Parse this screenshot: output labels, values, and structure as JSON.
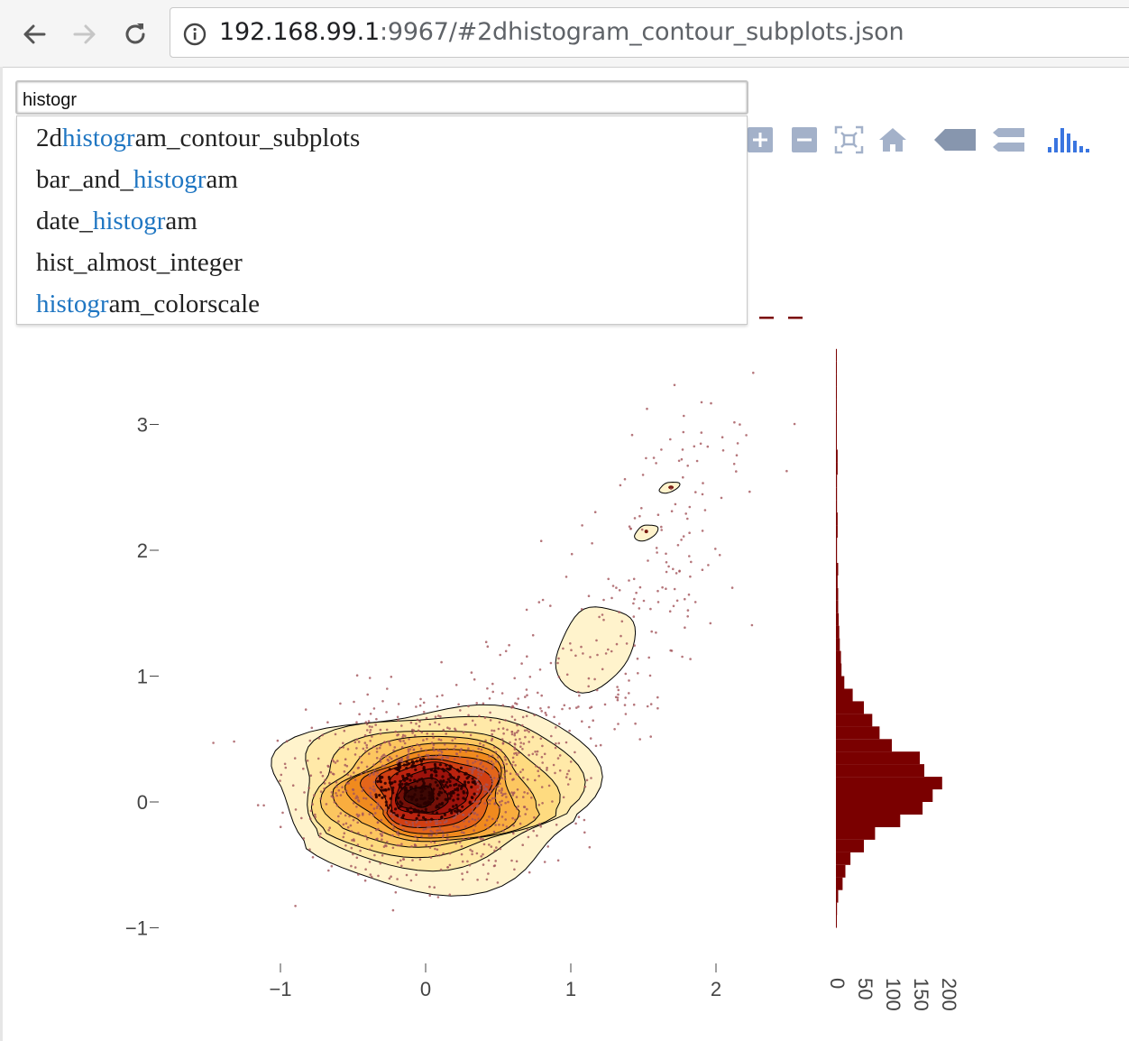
{
  "browser": {
    "url_host": "192.168.99.1",
    "url_rest": ":9967/#2dhistogram_contour_subplots.json"
  },
  "search": {
    "value": "histogr"
  },
  "dropdown": {
    "items": [
      {
        "pre": "2d",
        "match": "histogr",
        "post": "am_contour_subplots"
      },
      {
        "pre": "bar_and_",
        "match": "histogr",
        "post": "am"
      },
      {
        "pre": "date_",
        "match": "histogr",
        "post": "am"
      },
      {
        "pre": "hist_almost_integer",
        "match": "",
        "post": ""
      },
      {
        "pre": "",
        "match": "histogr",
        "post": "am_colorscale"
      }
    ]
  },
  "modebar": {
    "icons": [
      "zoom-in-icon",
      "zoom-out-icon",
      "autoscale-icon",
      "reset-axes-icon",
      "hover-closest-icon",
      "hover-compare-icon",
      "plotly-logo-icon"
    ]
  },
  "colors": {
    "highlight": "#1f76c2",
    "bar": "#7a0000",
    "modebar_icon": "#a3b1c9",
    "plotly_blue": "#3a75e0"
  },
  "chart_data": {
    "type": "heatmap",
    "subtype": "2d histogram contour with marginal histogram",
    "main": {
      "xticks": [
        -1,
        0,
        1,
        2
      ],
      "yticks": [
        -1,
        0,
        1,
        2,
        3
      ],
      "xlim": [
        -1.8,
        2.6
      ],
      "ylim": [
        -1.1,
        3.6
      ]
    },
    "marginal_y": {
      "type": "bar",
      "orientation": "horizontal",
      "xticks": [
        0,
        50,
        100,
        150,
        200
      ],
      "bins_y": [
        -1.0,
        -0.9,
        -0.8,
        -0.7,
        -0.6,
        -0.5,
        -0.4,
        -0.3,
        -0.2,
        -0.1,
        0.0,
        0.1,
        0.2,
        0.3,
        0.4,
        0.5,
        0.6,
        0.7,
        0.8,
        0.9,
        1.0,
        1.1,
        1.2,
        1.3,
        1.4,
        1.5,
        1.6,
        1.7,
        1.8,
        1.9,
        2.0,
        2.1,
        2.2,
        2.3,
        2.4,
        2.5,
        2.6,
        2.7,
        2.8,
        2.9,
        3.0,
        3.1,
        3.2,
        3.3,
        3.4,
        3.5
      ],
      "counts": [
        1,
        2,
        4,
        12,
        17,
        26,
        50,
        70,
        115,
        155,
        173,
        190,
        158,
        150,
        100,
        78,
        65,
        50,
        30,
        15,
        10,
        9,
        7,
        6,
        5,
        4,
        4,
        3,
        4,
        2,
        2,
        3,
        3,
        2,
        2,
        2,
        3,
        3,
        1,
        1,
        1,
        1,
        1,
        1,
        1,
        1
      ]
    }
  }
}
